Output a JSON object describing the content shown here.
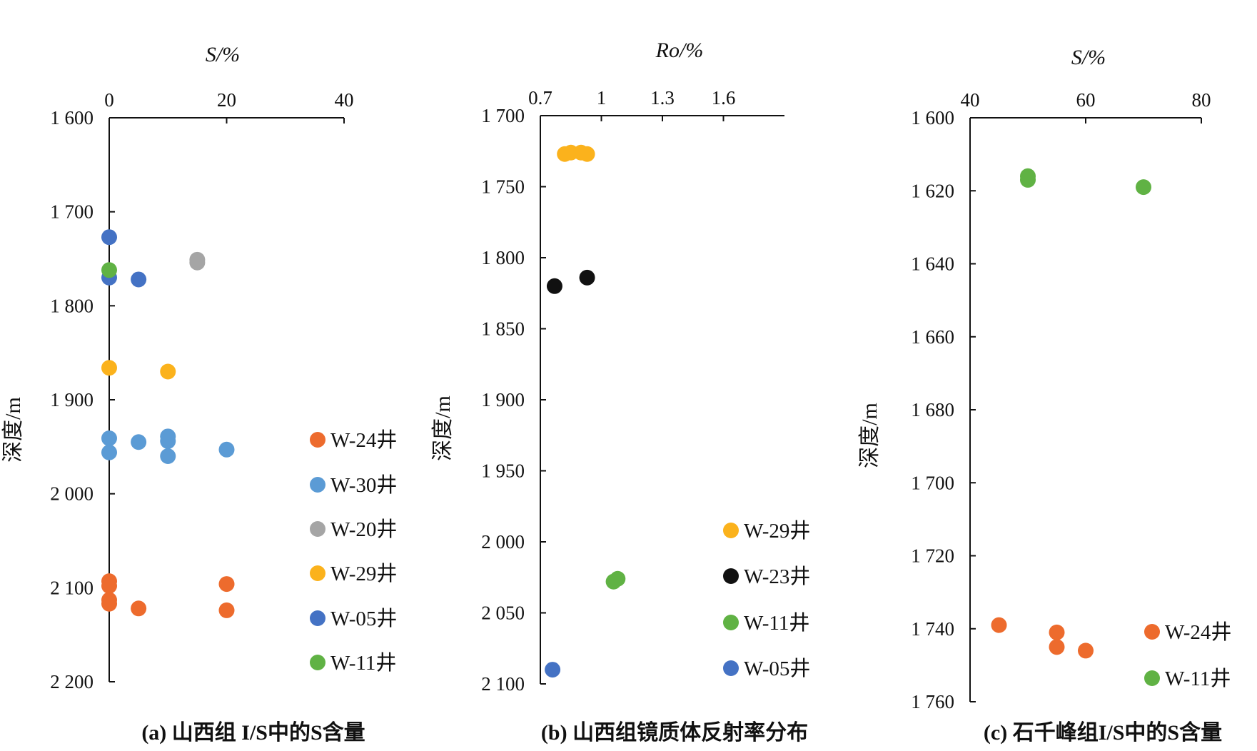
{
  "chart_data": [
    {
      "type": "scatter",
      "caption": "(a) 山西组 I/S中的S含量",
      "xlabel": "S/%",
      "ylabel": "深度/m",
      "xlim": [
        0,
        40
      ],
      "ylim": [
        1600,
        2200
      ],
      "y_reversed": true,
      "x_axis_position": "top",
      "xticks": [
        0,
        20,
        40
      ],
      "xtick_labels": [
        "0",
        "20",
        "40"
      ],
      "yticks": [
        1600,
        1700,
        1800,
        1900,
        2000,
        2100,
        2200
      ],
      "ytick_labels": [
        "1 600",
        "1 700",
        "1 800",
        "1 900",
        "2 000",
        "2 100",
        "2 200"
      ],
      "legend_position": "right",
      "series": [
        {
          "name": "W-24井",
          "color": "#ED6B2D",
          "points": [
            [
              0,
              2093
            ],
            [
              0,
              2098
            ],
            [
              0,
              2113
            ],
            [
              0,
              2117
            ],
            [
              5,
              2122
            ],
            [
              20,
              2096
            ],
            [
              20,
              2124
            ]
          ]
        },
        {
          "name": "W-30井",
          "color": "#5B9BD5",
          "points": [
            [
              0,
              1941
            ],
            [
              0,
              1956
            ],
            [
              5,
              1945
            ],
            [
              10,
              1939
            ],
            [
              10,
              1944
            ],
            [
              10,
              1960
            ],
            [
              20,
              1953
            ]
          ]
        },
        {
          "name": "W-20井",
          "color": "#A5A5A5",
          "points": [
            [
              15,
              1751
            ],
            [
              15,
              1754
            ]
          ]
        },
        {
          "name": "W-29井",
          "color": "#FBB21C",
          "points": [
            [
              0,
              1866
            ],
            [
              10,
              1870
            ]
          ]
        },
        {
          "name": "W-05井",
          "color": "#4472C4",
          "points": [
            [
              0,
              1727
            ],
            [
              0,
              1770
            ],
            [
              5,
              1772
            ]
          ]
        },
        {
          "name": "W-11井",
          "color": "#60B244",
          "points": [
            [
              0,
              1762
            ]
          ]
        }
      ]
    },
    {
      "type": "scatter",
      "caption": "(b) 山西组镜质体反射率分布",
      "xlabel": "Ro/%",
      "ylabel": "深度/m",
      "xlim": [
        0.7,
        1.9
      ],
      "ylim": [
        1700,
        2100
      ],
      "y_reversed": true,
      "x_axis_position": "top",
      "xticks": [
        0.7,
        1.0,
        1.3,
        1.6
      ],
      "xtick_labels": [
        "0.7",
        "1",
        "1.3",
        "1.6"
      ],
      "yticks": [
        1700,
        1750,
        1800,
        1850,
        1900,
        1950,
        2000,
        2050,
        2100
      ],
      "ytick_labels": [
        "1 700",
        "1 750",
        "1 800",
        "1 850",
        "1 900",
        "1 950",
        "2 000",
        "2 050",
        "2 100"
      ],
      "legend_position": "bottom-right",
      "series": [
        {
          "name": "W-29井",
          "color": "#FBB21C",
          "points": [
            [
              0.82,
              1727
            ],
            [
              0.85,
              1726
            ],
            [
              0.9,
              1726
            ],
            [
              0.93,
              1727
            ]
          ]
        },
        {
          "name": "W-23井",
          "color": "#111111",
          "points": [
            [
              0.77,
              1820
            ],
            [
              0.93,
              1814
            ]
          ]
        },
        {
          "name": "W-11井",
          "color": "#60B244",
          "points": [
            [
              1.06,
              2028
            ],
            [
              1.08,
              2026
            ]
          ]
        },
        {
          "name": "W-05井",
          "color": "#4472C4",
          "points": [
            [
              0.76,
              2090
            ]
          ]
        }
      ]
    },
    {
      "type": "scatter",
      "caption": "(c) 石千峰组I/S中的S含量",
      "xlabel": "S/%",
      "ylabel": "深度/m",
      "xlim": [
        40,
        80
      ],
      "ylim": [
        1600,
        1760
      ],
      "y_reversed": true,
      "x_axis_position": "top",
      "xticks": [
        40,
        60,
        80
      ],
      "xtick_labels": [
        "40",
        "60",
        "80"
      ],
      "yticks": [
        1600,
        1620,
        1640,
        1660,
        1680,
        1700,
        1720,
        1740,
        1760
      ],
      "ytick_labels": [
        "1 600",
        "1 620",
        "1 640",
        "1 660",
        "1 680",
        "1 700",
        "1 720",
        "1 740",
        "1 760"
      ],
      "legend_position": "bottom-right",
      "series": [
        {
          "name": "W-24井",
          "color": "#ED6B2D",
          "points": [
            [
              45,
              1739
            ],
            [
              55,
              1741
            ],
            [
              55,
              1745
            ],
            [
              60,
              1746
            ]
          ]
        },
        {
          "name": "W-11井",
          "color": "#60B244",
          "points": [
            [
              50,
              1616
            ],
            [
              50,
              1617
            ],
            [
              70,
              1619
            ]
          ]
        }
      ]
    }
  ]
}
